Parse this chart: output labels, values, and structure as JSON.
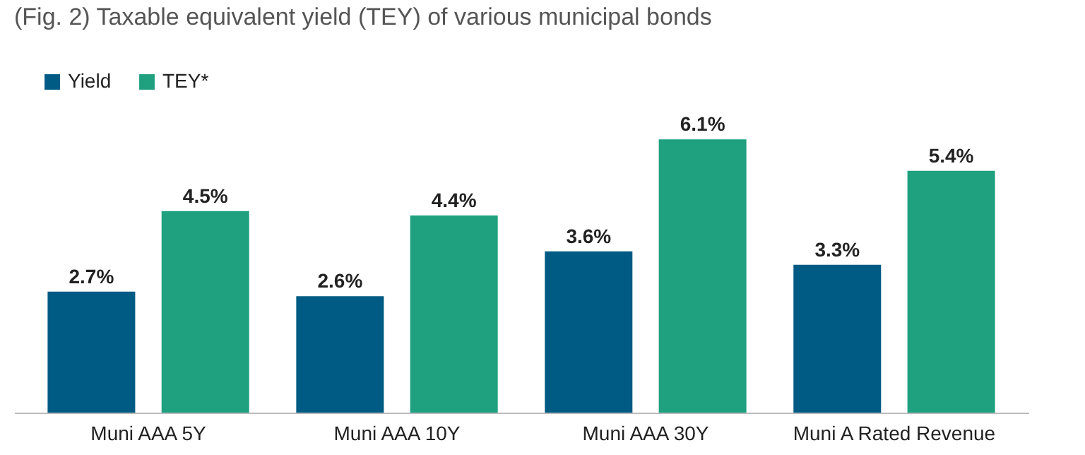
{
  "chart_data": {
    "type": "bar",
    "title": "(Fig. 2) Taxable equivalent yield (TEY) of various municipal bonds",
    "categories": [
      "Muni AAA 5Y",
      "Muni AAA 10Y",
      "Muni AAA 30Y",
      "Muni A Rated Revenue"
    ],
    "series": [
      {
        "name": "Yield",
        "color": "#005b84",
        "values": [
          2.7,
          2.6,
          3.6,
          3.3
        ],
        "value_labels": [
          "2.7%",
          "2.6%",
          "3.6%",
          "3.3%"
        ]
      },
      {
        "name": "TEY*",
        "color": "#1fa07f",
        "values": [
          4.5,
          4.4,
          6.1,
          5.4
        ],
        "value_labels": [
          "4.5%",
          "4.4%",
          "6.1%",
          "5.4%"
        ]
      }
    ],
    "legend": "top left"
  }
}
